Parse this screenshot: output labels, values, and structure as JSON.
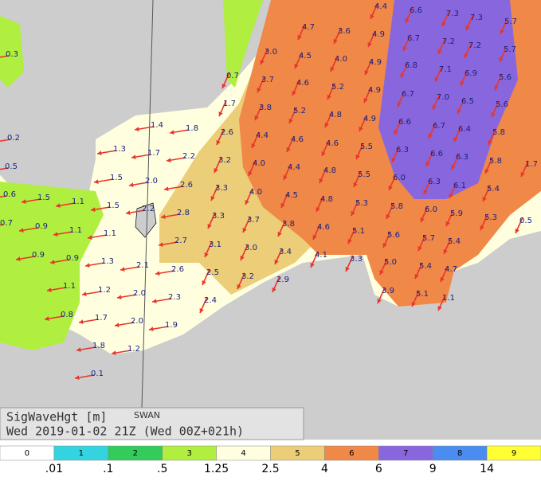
{
  "map": {
    "variable": "SigWaveHgt [m]",
    "model": "SWAN",
    "valid_time": "Wed 2019-01-02 21Z (Wed 00Z+021h)",
    "labels": [
      "4.4",
      "6.6",
      "7.3",
      "7.3",
      "5.7",
      "0.3",
      "4.7",
      "3.6",
      "4.9",
      "6.7",
      "7.2",
      "7.2",
      "5.7",
      "3.0",
      "4.5",
      "4.0",
      "4.9",
      "6.8",
      "7.1",
      "6.9",
      "5.6",
      "0.7",
      "3.7",
      "4.6",
      "5.2",
      "4.9",
      "6.7",
      "7.0",
      "6.5",
      "5.6",
      "1.7",
      "3.8",
      "5.2",
      "4.8",
      "4.9",
      "6.6",
      "6.7",
      "6.4",
      "5.8",
      "1.7",
      "1.4",
      "1.8",
      "2.6",
      "4.4",
      "4.6",
      "4.6",
      "5.5",
      "6.3",
      "6.6",
      "6.3",
      "5.8",
      "0.2",
      "1.3",
      "1.7",
      "2.2",
      "3.2",
      "4.0",
      "4.4",
      "4.8",
      "5.5",
      "6.0",
      "6.3",
      "6.1",
      "5.4",
      "0.5",
      "1.5",
      "2.0",
      "2.6",
      "3.3",
      "4.0",
      "4.5",
      "4.8",
      "5.3",
      "5.8",
      "6.0",
      "5.9",
      "5.3",
      "0.5",
      "0.6",
      "1.5",
      "1.1",
      "1.5",
      "2.2",
      "2.8",
      "3.3",
      "3.7",
      "3.8",
      "4.6",
      "5.1",
      "5.6",
      "5.7",
      "5.4",
      "0.7",
      "0.9",
      "1.1",
      "1.1",
      "2.7",
      "3.1",
      "3.0",
      "3.4",
      "4.1",
      "3.3",
      "5.0",
      "5.4",
      "4.7",
      "0.9",
      "0.9",
      "1.3",
      "2.1",
      "2.6",
      "2.5",
      "3.2",
      "2.9",
      "3.9",
      "5.1",
      "1.1",
      "1.1",
      "1.2",
      "2.0",
      "2.3",
      "2.4",
      "0.8",
      "1.7",
      "2.0",
      "1.9",
      "1.8",
      "1.2",
      "0.1"
    ],
    "colorbar": {
      "classes": [
        {
          "label": "0",
          "color": "#ffffff"
        },
        {
          "label": "1",
          "color": "#33d4e0"
        },
        {
          "label": "2",
          "color": "#33cc5a"
        },
        {
          "label": "3",
          "color": "#b0ee40"
        },
        {
          "label": "4",
          "color": "#ffffe0"
        },
        {
          "label": "5",
          "color": "#eccd78"
        },
        {
          "label": "6",
          "color": "#f08848"
        },
        {
          "label": "7",
          "color": "#8866dd"
        },
        {
          "label": "8",
          "color": "#4a8cf0"
        },
        {
          "label": "9",
          "color": "#ffff33"
        }
      ],
      "boundaries": [
        ".01",
        ".1",
        ".5",
        "1.25",
        "2.5",
        "4",
        "6",
        "9",
        "14"
      ]
    }
  }
}
